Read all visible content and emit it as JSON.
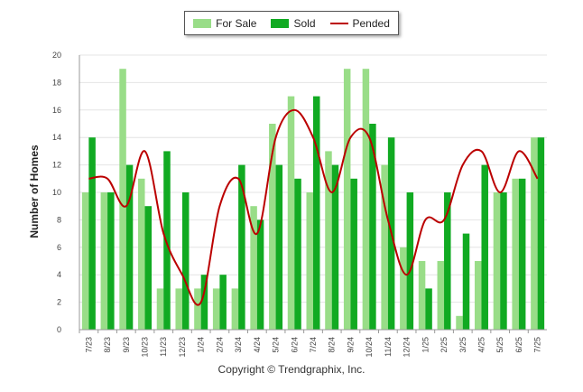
{
  "legend": {
    "for_sale": "For Sale",
    "sold": "Sold",
    "pended": "Pended"
  },
  "copyright": "Copyright © Trendgraphix, Inc.",
  "colors": {
    "for_sale": "#99dd88",
    "sold": "#11aa22",
    "pended": "#bb0000"
  },
  "chart_data": {
    "type": "bar",
    "ylabel": "Number of Homes",
    "xlabel": "",
    "ylim": [
      0,
      20
    ],
    "yticks": [
      0,
      2,
      4,
      6,
      8,
      10,
      12,
      14,
      16,
      18,
      20
    ],
    "grid": true,
    "legend_position": "top-center",
    "categories": [
      "7/23",
      "8/23",
      "9/23",
      "10/23",
      "11/23",
      "12/23",
      "1/24",
      "2/24",
      "3/24",
      "4/24",
      "5/24",
      "6/24",
      "7/24",
      "8/24",
      "9/24",
      "10/24",
      "11/24",
      "12/24",
      "1/25",
      "2/25",
      "3/25",
      "4/25",
      "5/25",
      "6/25",
      "7/25"
    ],
    "series": [
      {
        "name": "For Sale",
        "type": "bar",
        "values": [
          10,
          10,
          19,
          11,
          3,
          3,
          3,
          3,
          3,
          9,
          15,
          17,
          10,
          13,
          19,
          19,
          12,
          6,
          5,
          5,
          1,
          5,
          10,
          11,
          14
        ]
      },
      {
        "name": "Sold",
        "type": "bar",
        "values": [
          14,
          10,
          12,
          9,
          13,
          10,
          4,
          4,
          12,
          8,
          12,
          11,
          17,
          12,
          11,
          15,
          14,
          10,
          3,
          10,
          7,
          12,
          10,
          11,
          14
        ]
      },
      {
        "name": "Pended",
        "type": "line",
        "values": [
          11,
          11,
          9,
          13,
          7,
          4,
          2,
          9,
          11,
          7,
          14,
          16,
          14,
          10,
          14,
          14,
          8,
          4,
          8,
          8,
          12,
          13,
          10,
          13,
          11
        ]
      }
    ]
  }
}
